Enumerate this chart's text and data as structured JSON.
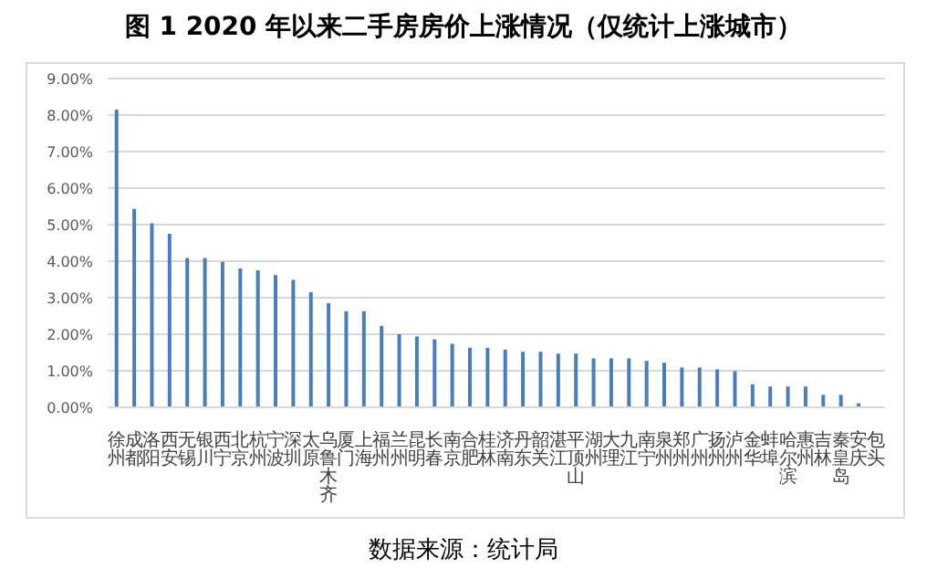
{
  "chart_data": {
    "type": "bar",
    "title": "图 1 2020 年以来二手房房价上涨情况（仅统计上涨城市）",
    "categories": [
      "徐州",
      "成都",
      "洛阳",
      "西安",
      "无锡",
      "银川",
      "西宁",
      "北京",
      "杭州",
      "宁波",
      "深圳",
      "太原",
      "乌鲁木齐",
      "厦门",
      "上海",
      "福州",
      "兰州",
      "昆明",
      "长春",
      "南京",
      "合肥",
      "桂林",
      "济南",
      "丹东",
      "韶关",
      "湛江",
      "平顶山",
      "湖州",
      "大理",
      "九江",
      "南宁",
      "泉州",
      "郑州",
      "广州",
      "扬州",
      "泸州",
      "金华",
      "蚌埠",
      "哈尔滨",
      "惠州",
      "吉林",
      "秦皇岛",
      "安庆",
      "包头"
    ],
    "values": [
      8.15,
      5.43,
      5.04,
      4.75,
      4.09,
      4.09,
      3.98,
      3.8,
      3.75,
      3.62,
      3.49,
      3.15,
      2.85,
      2.63,
      2.63,
      2.23,
      2.0,
      1.94,
      1.86,
      1.74,
      1.63,
      1.63,
      1.58,
      1.52,
      1.52,
      1.47,
      1.47,
      1.34,
      1.34,
      1.34,
      1.27,
      1.22,
      1.09,
      1.09,
      1.04,
      0.99,
      0.63,
      0.57,
      0.57,
      0.57,
      0.34,
      0.34,
      0.11,
      0
    ],
    "color": "#4a7ebb",
    "ylim": [
      0,
      9
    ],
    "yticks": [
      {
        "value": 0,
        "label": "0.00%"
      },
      {
        "value": 1,
        "label": "1.00%"
      },
      {
        "value": 2,
        "label": "2.00%"
      },
      {
        "value": 3,
        "label": "3.00%"
      },
      {
        "value": 4,
        "label": "4.00%"
      },
      {
        "value": 5,
        "label": "5.00%"
      },
      {
        "value": 6,
        "label": "6.00%"
      },
      {
        "value": 7,
        "label": "7.00%"
      },
      {
        "value": 8,
        "label": "8.00%"
      },
      {
        "value": 9,
        "label": "9.00%"
      }
    ],
    "grid": "y",
    "annotations": [
      "数据来源：统计局"
    ]
  }
}
